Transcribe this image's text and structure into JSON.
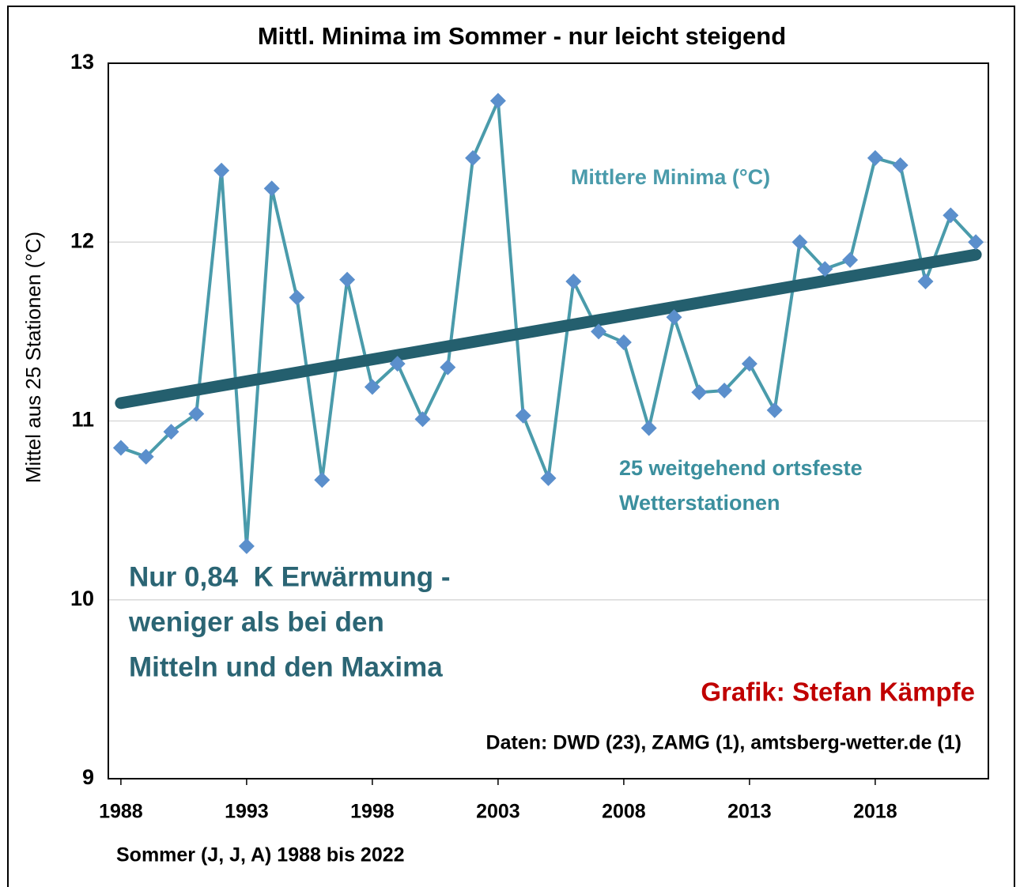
{
  "chart_data": {
    "type": "line",
    "title": "Mittl. Minima im Sommer - nur leicht steigend",
    "ylabel": "Mittel aus 25 Stationen (°C)",
    "xlabel": "Sommer (J, J, A) 1988 bis 2022",
    "xlim": [
      1987.5,
      2022.5
    ],
    "xticks": [
      1988,
      1993,
      1998,
      2003,
      2008,
      2013,
      2018
    ],
    "ylim": [
      9,
      13
    ],
    "yticks": [
      9,
      10,
      11,
      12,
      13
    ],
    "grid": true,
    "series": [
      {
        "name": "Mittlere Minima (°C)",
        "color": "#4a9bab",
        "marker_color": "#5b8fcc",
        "x": [
          1988,
          1989,
          1990,
          1991,
          1992,
          1993,
          1994,
          1995,
          1996,
          1997,
          1998,
          1999,
          2000,
          2001,
          2002,
          2003,
          2004,
          2005,
          2006,
          2007,
          2008,
          2009,
          2010,
          2011,
          2012,
          2013,
          2014,
          2015,
          2016,
          2017,
          2018,
          2019,
          2020,
          2021,
          2022
        ],
        "values": [
          10.85,
          10.8,
          10.94,
          11.04,
          12.4,
          10.3,
          12.3,
          11.69,
          10.67,
          11.79,
          11.19,
          11.32,
          11.01,
          11.3,
          12.47,
          12.79,
          11.03,
          10.68,
          11.78,
          11.5,
          11.44,
          10.96,
          11.58,
          11.16,
          11.17,
          11.32,
          11.06,
          12.0,
          11.85,
          11.9,
          12.47,
          12.43,
          11.78,
          12.15,
          12.0
        ]
      },
      {
        "color": "#245f6e",
        "x": [
          1988,
          2022
        ],
        "values": [
          11.1,
          11.93
        ]
      }
    ],
    "annotations": [
      {
        "lines": [
          "25 weitgehend ortsfeste",
          "Wetterstationen"
        ],
        "color": "#3b8f9e"
      },
      {
        "lines": [
          "Nur 0,84  K Erwärmung -",
          "weniger als bei den",
          "Mitteln und den Maxima"
        ],
        "color": "#2b6574"
      },
      {
        "lines": [
          "Grafik: Stefan Kämpfe"
        ],
        "color": "#c00000"
      },
      {
        "lines": [
          "Daten: DWD (23), ZAMG (1), amtsberg-wetter.de (1)"
        ],
        "color": "#000000"
      }
    ]
  }
}
